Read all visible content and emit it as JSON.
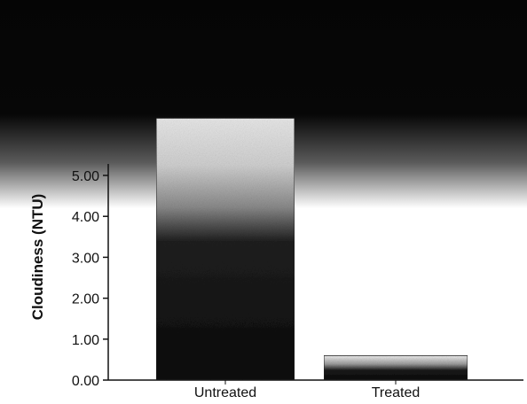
{
  "chart_data": {
    "type": "bar",
    "title": "",
    "xlabel": "",
    "ylabel": "Cloudiness (NTU)",
    "categories": [
      "Untreated",
      "Treated"
    ],
    "values": [
      6.4,
      0.6
    ],
    "ylim": [
      0,
      6.4
    ],
    "yticks": [
      "0.00",
      "1.00",
      "2.00",
      "3.00",
      "4.00",
      "5.00"
    ],
    "grid": false,
    "legend": "none",
    "colors": {
      "bar_dark": "#0b0b0b",
      "bar_light": "#e6e6e6",
      "background_band": "#050505"
    }
  }
}
